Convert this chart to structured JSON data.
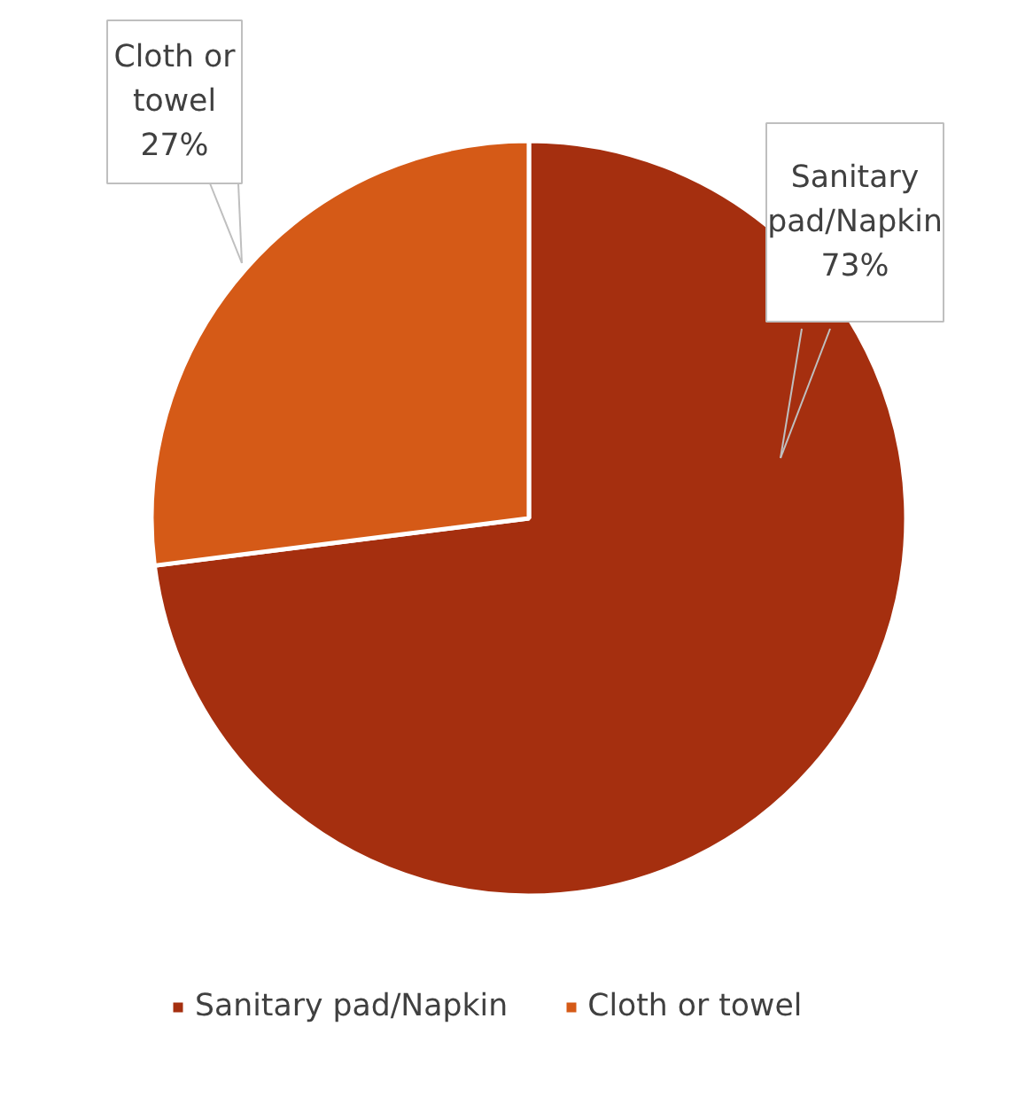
{
  "chart_data": {
    "type": "pie",
    "categories": [
      "Sanitary pad/Napkin",
      "Cloth or towel"
    ],
    "values": [
      73,
      27
    ],
    "colors": [
      "#a52f0f",
      "#d55a17"
    ],
    "data_labels": true,
    "value_labels": [
      "73%",
      "27%"
    ],
    "legend": "bottom"
  }
}
